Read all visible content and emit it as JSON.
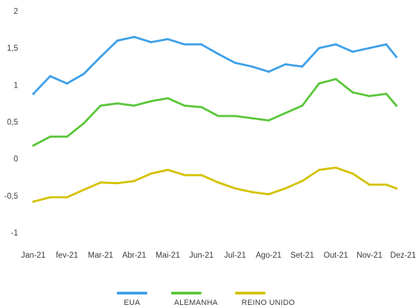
{
  "chart_data": {
    "type": "line",
    "x_tick_labels": [
      "Jan-21",
      "fev-21",
      "Mar-21",
      "Abr-21",
      "Mai-21",
      "Jun-21",
      "Jul-21",
      "Ago-21",
      "Set-21",
      "Out-21",
      "Nov-21",
      "Dez-21"
    ],
    "x": [
      0,
      0.5,
      1,
      1.5,
      2,
      2.5,
      3,
      3.5,
      4,
      4.5,
      5,
      5.5,
      6,
      6.5,
      7,
      7.5,
      8,
      8.5,
      9,
      9.5,
      10,
      10.5,
      10.8
    ],
    "xlim": [
      0,
      11
    ],
    "ylim": [
      -1,
      2
    ],
    "y_ticks": [
      2,
      1.5,
      1,
      0.5,
      0,
      -0.5,
      -1
    ],
    "y_tick_labels": [
      "2",
      "1,5",
      "1",
      "0,5",
      "0",
      "-0,5",
      "-1"
    ],
    "grid": false,
    "legend_position": "bottom",
    "series": [
      {
        "name": "EUA",
        "color": "#3fa0e8",
        "values": [
          0.88,
          1.12,
          1.02,
          1.15,
          1.38,
          1.6,
          1.65,
          1.58,
          1.62,
          1.55,
          1.55,
          1.42,
          1.3,
          1.25,
          1.18,
          1.28,
          1.25,
          1.5,
          1.55,
          1.45,
          1.5,
          1.55,
          1.38
        ]
      },
      {
        "name": "ALEMANHA",
        "color": "#5ac73a",
        "values": [
          0.18,
          0.3,
          0.3,
          0.48,
          0.72,
          0.75,
          0.72,
          0.78,
          0.82,
          0.72,
          0.7,
          0.58,
          0.58,
          0.55,
          0.52,
          0.62,
          0.72,
          1.02,
          1.08,
          0.9,
          0.85,
          0.88,
          0.72
        ]
      },
      {
        "name": "REINO UNIDO",
        "color": "#d4c200",
        "values": [
          -0.58,
          -0.52,
          -0.52,
          -0.42,
          -0.32,
          -0.33,
          -0.3,
          -0.2,
          -0.15,
          -0.22,
          -0.22,
          -0.32,
          -0.4,
          -0.45,
          -0.48,
          -0.4,
          -0.3,
          -0.15,
          -0.12,
          -0.2,
          -0.35,
          -0.35,
          -0.4
        ]
      }
    ]
  }
}
